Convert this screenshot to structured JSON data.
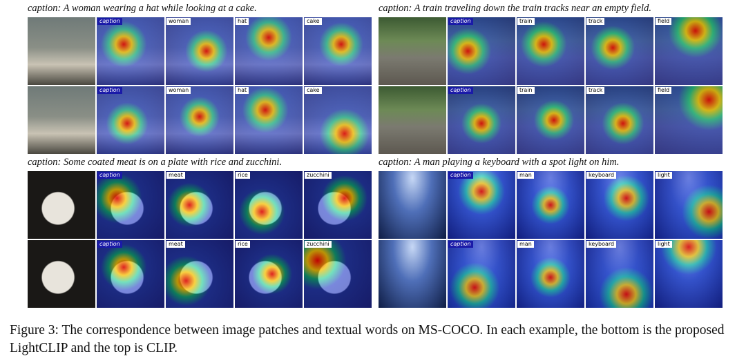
{
  "panels": [
    {
      "caption": "caption: A woman wearing a hat while looking at a cake.",
      "rows": [
        [
          "caption",
          "woman",
          "hat",
          "cake"
        ],
        [
          "caption",
          "woman",
          "hat",
          "cake"
        ]
      ]
    },
    {
      "caption": "caption: A train traveling down the train tracks near an empty field.",
      "rows": [
        [
          "caption",
          "train",
          "track",
          "field"
        ],
        [
          "caption",
          "train",
          "track",
          "field"
        ]
      ]
    },
    {
      "caption": "caption: Some coated meat is on a plate with rice and zucchini.",
      "rows": [
        [
          "caption",
          "meat",
          "rice",
          "zucchini"
        ],
        [
          "caption",
          "meat",
          "rice",
          "zucchini"
        ]
      ]
    },
    {
      "caption": "caption: A man playing a keyboard with a spot light on him.",
      "rows": [
        [
          "caption",
          "man",
          "keyboard",
          "light"
        ],
        [
          "caption",
          "man",
          "keyboard",
          "light"
        ]
      ]
    }
  ],
  "figure_caption": "Figure 3: The correspondence between image patches and textual words on MS-COCO. In each example, the bottom is the proposed LightCLIP and the top is CLIP."
}
